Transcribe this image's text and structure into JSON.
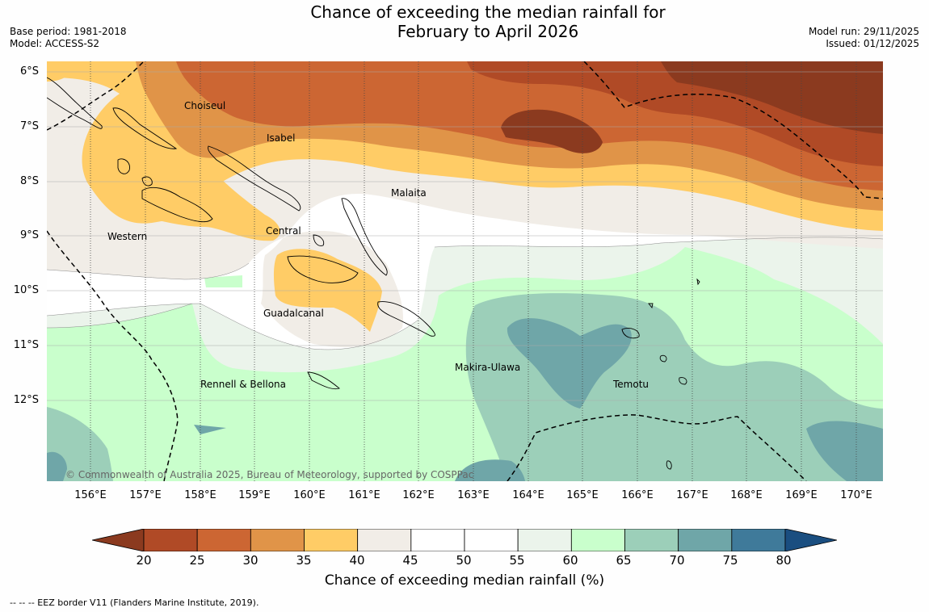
{
  "title": {
    "line1": "Chance of exceeding the median rainfall for",
    "line2": "February to April 2026"
  },
  "meta": {
    "base_period": "Base period: 1981-2018",
    "model": "Model: ACCESS-S2",
    "model_run": "Model run: 29/11/2025",
    "issued": "Issued: 01/12/2025"
  },
  "map": {
    "lat_labels": [
      "6°S",
      "7°S",
      "8°S",
      "9°S",
      "10°S",
      "11°S",
      "12°S"
    ],
    "lon_labels": [
      "156°E",
      "157°E",
      "158°E",
      "159°E",
      "160°E",
      "161°E",
      "162°E",
      "163°E",
      "164°E",
      "165°E",
      "166°E",
      "167°E",
      "168°E",
      "169°E",
      "170°E"
    ],
    "provinces": [
      "Choiseul",
      "Isabel",
      "Malaita",
      "Western",
      "Central",
      "Guadalcanal",
      "Makira-Ulawa",
      "Rennell & Bellona",
      "Temotu"
    ],
    "copyright": "© Commonwealth of Australia 2025, Bureau of Meteorology, supported by COSPPac"
  },
  "colorbar": {
    "labels": [
      "20",
      "25",
      "30",
      "35",
      "40",
      "45",
      "50",
      "55",
      "60",
      "65",
      "70",
      "75",
      "80"
    ],
    "colors": [
      "#8b3a1f",
      "#b04a26",
      "#cc6633",
      "#e09448",
      "#ffcc66",
      "#f1ede7",
      "#ffffff",
      "#ffffff",
      "#ebf4eb",
      "#c9ffcc",
      "#9ccfb9",
      "#6fa6a8",
      "#3f7a9a",
      "#1a4e80"
    ],
    "title": "Chance of exceeding median rainfall (%)"
  },
  "footnote": "--  --  -- EEZ border V11 (Flanders Marine Institute, 2019)."
}
